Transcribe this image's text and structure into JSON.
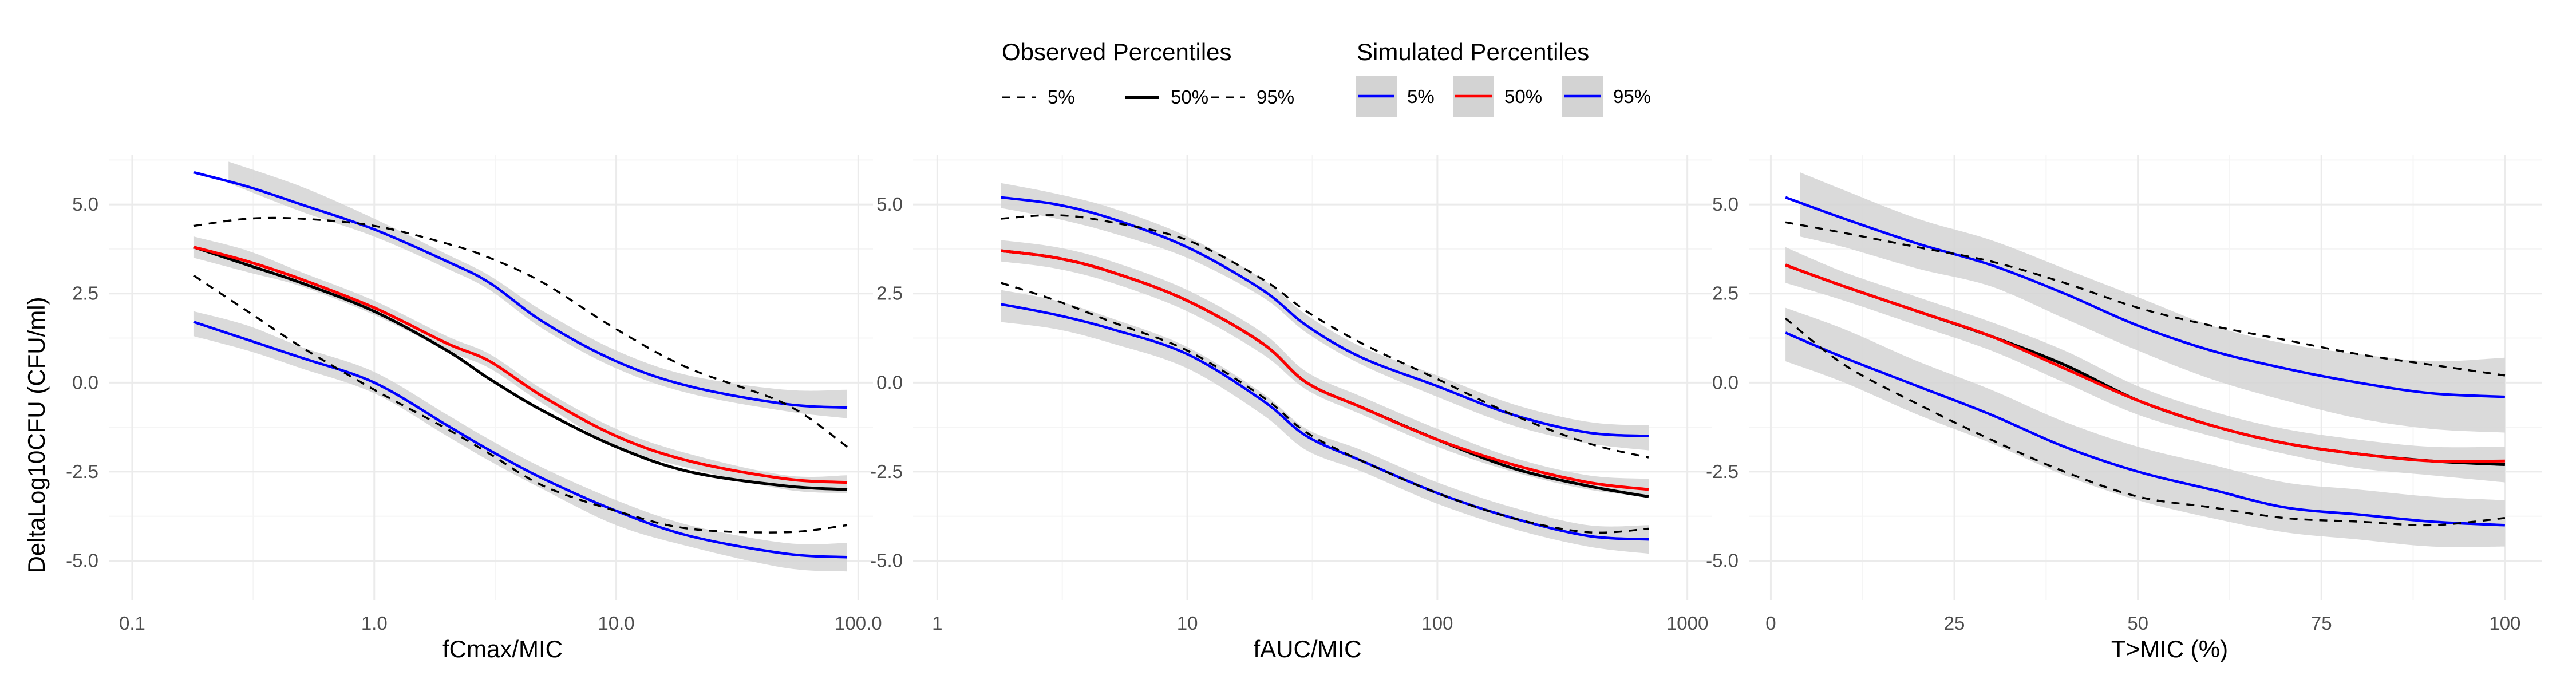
{
  "legend": {
    "observed": {
      "title": "Observed Percentiles",
      "items": [
        {
          "label": "5%",
          "color": "#000000",
          "dash": "dashed",
          "width": 3
        },
        {
          "label": "50%",
          "color": "#000000",
          "dash": "solid",
          "width": 6
        },
        {
          "label": "95%",
          "color": "#000000",
          "dash": "dashed",
          "width": 3
        }
      ]
    },
    "simulated": {
      "title": "Simulated Percentiles",
      "items": [
        {
          "label": "5%",
          "color": "#0000ff",
          "band": "#d3d3d3"
        },
        {
          "label": "50%",
          "color": "#ff0000",
          "band": "#d3d3d3"
        },
        {
          "label": "95%",
          "color": "#0000ff",
          "band": "#d3d3d3"
        }
      ]
    }
  },
  "colors": {
    "observed": "#000000",
    "simulated_median": "#ff0000",
    "simulated_tails": "#0000ff",
    "ci_band": "#d3d3d3",
    "grid_major": "#ebebeb",
    "grid_minor": "#f5f5f5"
  },
  "chart_data": [
    {
      "type": "line",
      "xlabel": "fCmax/MIC",
      "ylabel": "DeltaLog10CFU (CFU/ml)",
      "xscale": "log10",
      "xlim": [
        0.08,
        115
      ],
      "ylim": [
        -6.1,
        6.4
      ],
      "xticks": [
        0.1,
        1,
        10,
        100
      ],
      "xtick_labels": [
        "0.1",
        "1.0",
        "10.0",
        "100.0"
      ],
      "yticks": [
        -5,
        -2.5,
        0,
        2.5,
        5
      ],
      "ytick_labels": [
        "-5.0",
        "-2.5",
        "0.0",
        "2.5",
        "5.0"
      ],
      "grid": true,
      "ci_bands": [
        {
          "name": "95%",
          "x": [
            0.25,
            0.5,
            1,
            2,
            3,
            5,
            10,
            20,
            50,
            90
          ],
          "lower": [
            5.6,
            4.8,
            4.1,
            3.2,
            2.6,
            1.5,
            0.4,
            -0.3,
            -0.8,
            -1.0
          ],
          "upper": [
            6.2,
            5.5,
            4.6,
            3.6,
            3.0,
            2.0,
            0.9,
            0.2,
            -0.2,
            -0.2
          ]
        },
        {
          "name": "50%",
          "x": [
            0.18,
            0.3,
            0.5,
            1,
            2,
            3,
            5,
            10,
            20,
            50,
            90
          ],
          "lower": [
            3.5,
            3.1,
            2.7,
            1.9,
            0.9,
            0.4,
            -0.6,
            -1.8,
            -2.4,
            -3.0,
            -3.1
          ],
          "upper": [
            4.1,
            3.7,
            3.1,
            2.3,
            1.3,
            0.8,
            -0.2,
            -1.3,
            -2.0,
            -2.6,
            -2.6
          ]
        },
        {
          "name": "5%",
          "x": [
            0.18,
            0.3,
            0.5,
            1,
            2,
            3,
            5,
            10,
            20,
            50,
            90
          ],
          "lower": [
            1.3,
            0.9,
            0.4,
            -0.3,
            -1.5,
            -2.2,
            -3.0,
            -4.0,
            -4.6,
            -5.2,
            -5.3
          ],
          "upper": [
            2.0,
            1.6,
            1.0,
            0.3,
            -0.9,
            -1.6,
            -2.4,
            -3.3,
            -4.0,
            -4.5,
            -4.5
          ]
        }
      ],
      "series": [
        {
          "name": "Observed 5%",
          "x": [
            0.18,
            0.3,
            0.5,
            1,
            2,
            3,
            5,
            10,
            20,
            50,
            90
          ],
          "y": [
            3.0,
            2.0,
            1.0,
            -0.2,
            -1.3,
            -2.0,
            -2.9,
            -3.6,
            -4.1,
            -4.2,
            -4.0
          ]
        },
        {
          "name": "Observed 50%",
          "x": [
            0.18,
            0.3,
            0.5,
            1,
            2,
            3,
            5,
            10,
            20,
            50,
            90
          ],
          "y": [
            3.8,
            3.3,
            2.8,
            2.0,
            0.9,
            0.1,
            -0.8,
            -1.8,
            -2.5,
            -2.9,
            -3.0
          ]
        },
        {
          "name": "Observed 95%",
          "x": [
            0.18,
            0.3,
            0.5,
            1,
            2,
            3,
            5,
            10,
            20,
            50,
            90
          ],
          "y": [
            4.4,
            4.6,
            4.6,
            4.4,
            3.9,
            3.5,
            2.8,
            1.5,
            0.4,
            -0.6,
            -1.8
          ]
        },
        {
          "name": "Simulated 5%",
          "x": [
            0.18,
            0.3,
            0.5,
            1,
            2,
            3,
            5,
            10,
            20,
            50,
            90
          ],
          "y": [
            1.7,
            1.2,
            0.7,
            0.0,
            -1.2,
            -1.9,
            -2.7,
            -3.6,
            -4.3,
            -4.8,
            -4.9
          ]
        },
        {
          "name": "Simulated 50%",
          "x": [
            0.18,
            0.3,
            0.5,
            1,
            2,
            3,
            5,
            10,
            20,
            50,
            90
          ],
          "y": [
            3.8,
            3.4,
            2.9,
            2.1,
            1.1,
            0.6,
            -0.4,
            -1.5,
            -2.2,
            -2.7,
            -2.8
          ]
        },
        {
          "name": "Simulated 95%",
          "x": [
            0.18,
            0.3,
            0.5,
            1,
            2,
            3,
            5,
            10,
            20,
            50,
            90
          ],
          "y": [
            5.9,
            5.5,
            5.0,
            4.3,
            3.4,
            2.8,
            1.7,
            0.6,
            -0.1,
            -0.6,
            -0.7
          ]
        }
      ]
    },
    {
      "type": "line",
      "xlabel": "fAUC/MIC",
      "ylabel": "",
      "xscale": "log10",
      "xlim": [
        0.8,
        1250
      ],
      "ylim": [
        -6.1,
        6.4
      ],
      "xticks": [
        1,
        10,
        100,
        1000
      ],
      "xtick_labels": [
        "1",
        "10",
        "100",
        "1000"
      ],
      "yticks": [
        -5,
        -2.5,
        0,
        2.5,
        5
      ],
      "ytick_labels": [
        "-5.0",
        "-2.5",
        "0.0",
        "2.5",
        "5.0"
      ],
      "grid": true,
      "ci_bands": [
        {
          "name": "95%",
          "x": [
            1.8,
            3,
            5,
            10,
            20,
            30,
            50,
            100,
            200,
            400,
            700
          ],
          "lower": [
            4.9,
            4.6,
            4.2,
            3.5,
            2.4,
            1.4,
            0.5,
            -0.4,
            -1.2,
            -1.7,
            -1.9
          ],
          "upper": [
            5.6,
            5.3,
            4.9,
            4.1,
            2.9,
            1.9,
            1.0,
            0.2,
            -0.6,
            -1.1,
            -1.2
          ]
        },
        {
          "name": "50%",
          "x": [
            1.8,
            3,
            5,
            10,
            20,
            30,
            50,
            100,
            200,
            400,
            700
          ],
          "lower": [
            3.4,
            3.2,
            2.8,
            2.0,
            0.8,
            -0.2,
            -0.9,
            -1.8,
            -2.5,
            -3.0,
            -3.2
          ],
          "upper": [
            4.0,
            3.8,
            3.4,
            2.6,
            1.4,
            0.3,
            -0.4,
            -1.3,
            -2.1,
            -2.6,
            -2.7
          ]
        },
        {
          "name": "5%",
          "x": [
            1.8,
            3,
            5,
            10,
            20,
            30,
            50,
            100,
            200,
            400,
            700
          ],
          "lower": [
            1.7,
            1.5,
            1.1,
            0.4,
            -0.9,
            -1.9,
            -2.5,
            -3.4,
            -4.1,
            -4.6,
            -4.8
          ],
          "upper": [
            2.6,
            2.3,
            1.8,
            1.0,
            -0.3,
            -1.3,
            -1.9,
            -2.8,
            -3.5,
            -4.0,
            -4.0
          ]
        }
      ],
      "series": [
        {
          "name": "Observed 5%",
          "x": [
            1.8,
            3,
            5,
            10,
            20,
            30,
            50,
            100,
            200,
            400,
            700
          ],
          "y": [
            2.8,
            2.3,
            1.7,
            0.9,
            -0.4,
            -1.4,
            -2.2,
            -3.1,
            -3.8,
            -4.2,
            -4.1
          ]
        },
        {
          "name": "Observed 50%",
          "x": [
            1.8,
            3,
            5,
            10,
            20,
            30,
            50,
            100,
            200,
            400,
            700
          ],
          "y": [
            3.7,
            3.5,
            3.1,
            2.3,
            1.1,
            0.0,
            -0.7,
            -1.6,
            -2.4,
            -2.9,
            -3.2
          ]
        },
        {
          "name": "Observed 95%",
          "x": [
            1.8,
            3,
            5,
            10,
            20,
            30,
            50,
            100,
            200,
            400,
            700
          ],
          "y": [
            4.6,
            4.7,
            4.5,
            4.0,
            2.9,
            2.0,
            1.1,
            0.1,
            -0.9,
            -1.7,
            -2.1
          ]
        },
        {
          "name": "Simulated 5%",
          "x": [
            1.8,
            3,
            5,
            10,
            20,
            30,
            50,
            100,
            200,
            400,
            700
          ],
          "y": [
            2.2,
            1.9,
            1.5,
            0.8,
            -0.5,
            -1.5,
            -2.2,
            -3.1,
            -3.8,
            -4.3,
            -4.4
          ]
        },
        {
          "name": "Simulated 50%",
          "x": [
            1.8,
            3,
            5,
            10,
            20,
            30,
            50,
            100,
            200,
            400,
            700
          ],
          "y": [
            3.7,
            3.5,
            3.1,
            2.3,
            1.1,
            0.0,
            -0.7,
            -1.6,
            -2.3,
            -2.8,
            -3.0
          ]
        },
        {
          "name": "Simulated 95%",
          "x": [
            1.8,
            3,
            5,
            10,
            20,
            30,
            50,
            100,
            200,
            400,
            700
          ],
          "y": [
            5.2,
            5.0,
            4.6,
            3.8,
            2.6,
            1.6,
            0.7,
            -0.1,
            -0.9,
            -1.4,
            -1.5
          ]
        }
      ]
    },
    {
      "type": "line",
      "xlabel": "T>MIC (%)",
      "ylabel": "",
      "xscale": "linear",
      "xlim": [
        -3,
        105
      ],
      "ylim": [
        -6.1,
        6.4
      ],
      "xticks": [
        0,
        25,
        50,
        75,
        100
      ],
      "xtick_labels": [
        "0",
        "25",
        "50",
        "75",
        "100"
      ],
      "yticks": [
        -5,
        -2.5,
        0,
        2.5,
        5
      ],
      "ytick_labels": [
        "-5.0",
        "-2.5",
        "0.0",
        "2.5",
        "5.0"
      ],
      "grid": true,
      "ci_bands": [
        {
          "name": "95%",
          "x": [
            4,
            10,
            20,
            30,
            40,
            50,
            60,
            70,
            80,
            90,
            100
          ],
          "lower": [
            4.1,
            3.8,
            3.2,
            2.7,
            1.8,
            0.9,
            0.1,
            -0.5,
            -1.0,
            -1.3,
            -1.4
          ],
          "upper": [
            5.9,
            5.4,
            4.6,
            4.0,
            3.2,
            2.4,
            1.6,
            1.1,
            0.8,
            0.6,
            0.7
          ]
        },
        {
          "name": "50%",
          "x": [
            2,
            10,
            20,
            30,
            40,
            50,
            60,
            70,
            80,
            90,
            100
          ],
          "lower": [
            2.8,
            2.3,
            1.6,
            0.9,
            0.0,
            -0.9,
            -1.5,
            -2.0,
            -2.4,
            -2.6,
            -2.8
          ],
          "upper": [
            3.8,
            3.1,
            2.4,
            1.7,
            0.9,
            -0.1,
            -0.8,
            -1.3,
            -1.6,
            -1.8,
            -1.8
          ]
        },
        {
          "name": "5%",
          "x": [
            2,
            10,
            20,
            30,
            40,
            50,
            60,
            70,
            80,
            90,
            100
          ],
          "lower": [
            0.6,
            0.0,
            -0.9,
            -1.7,
            -2.6,
            -3.3,
            -3.8,
            -4.2,
            -4.4,
            -4.6,
            -4.6
          ],
          "upper": [
            2.1,
            1.5,
            0.6,
            -0.2,
            -1.1,
            -1.8,
            -2.3,
            -2.8,
            -3.0,
            -3.2,
            -3.3
          ]
        }
      ],
      "series": [
        {
          "name": "Observed 5%",
          "x": [
            2,
            10,
            20,
            30,
            40,
            50,
            60,
            70,
            80,
            90,
            100
          ],
          "y": [
            1.8,
            0.5,
            -0.6,
            -1.6,
            -2.5,
            -3.2,
            -3.5,
            -3.8,
            -3.9,
            -4.0,
            -3.8
          ]
        },
        {
          "name": "Observed 50%",
          "x": [
            2,
            10,
            20,
            30,
            40,
            50,
            60,
            70,
            80,
            90,
            100
          ],
          "y": [
            3.3,
            2.7,
            2.0,
            1.3,
            0.5,
            -0.5,
            -1.2,
            -1.7,
            -2.0,
            -2.2,
            -2.3
          ]
        },
        {
          "name": "Observed 95%",
          "x": [
            2,
            10,
            20,
            30,
            40,
            50,
            60,
            70,
            80,
            90,
            100
          ],
          "y": [
            4.5,
            4.2,
            3.8,
            3.4,
            2.8,
            2.1,
            1.6,
            1.2,
            0.8,
            0.5,
            0.2
          ]
        },
        {
          "name": "Simulated 5%",
          "x": [
            2,
            10,
            20,
            30,
            40,
            50,
            60,
            70,
            80,
            90,
            100
          ],
          "y": [
            1.4,
            0.7,
            -0.1,
            -0.9,
            -1.8,
            -2.5,
            -3.0,
            -3.5,
            -3.7,
            -3.9,
            -4.0
          ]
        },
        {
          "name": "Simulated 50%",
          "x": [
            2,
            10,
            20,
            30,
            40,
            50,
            60,
            70,
            80,
            90,
            100
          ],
          "y": [
            3.3,
            2.7,
            2.0,
            1.3,
            0.4,
            -0.5,
            -1.2,
            -1.7,
            -2.0,
            -2.2,
            -2.2
          ]
        },
        {
          "name": "Simulated 95%",
          "x": [
            2,
            10,
            20,
            30,
            40,
            50,
            60,
            70,
            80,
            90,
            100
          ],
          "y": [
            5.2,
            4.6,
            3.9,
            3.3,
            2.5,
            1.6,
            0.9,
            0.4,
            0.0,
            -0.3,
            -0.4
          ]
        }
      ]
    }
  ]
}
